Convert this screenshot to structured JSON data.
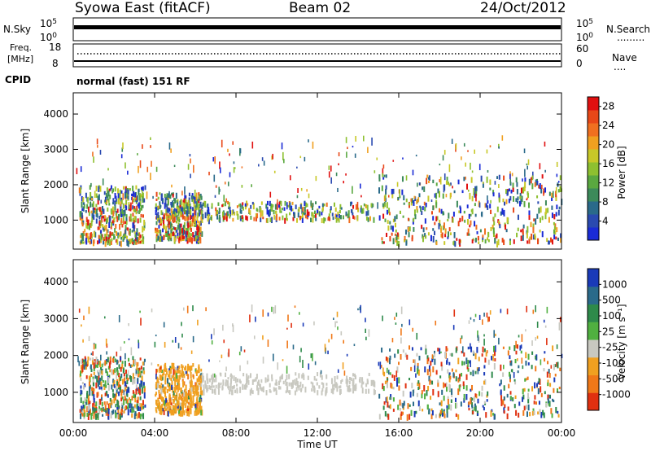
{
  "header": {
    "station": "Syowa East (fitACF)",
    "beam": "Beam 02",
    "date": "24/Oct/2012"
  },
  "top_panels": {
    "nsky_label": "N.Sky",
    "nsky_tick_hi": "10^5",
    "nsky_tick_lo": "10^0",
    "nsearch_label": "N.Search",
    "freq_label_a": "Freq.",
    "freq_label_b": "[MHz]",
    "freq_tick_hi": "18",
    "freq_tick_lo": "8",
    "nave_label": "Nave",
    "nave_tick_hi": "60",
    "nave_tick_lo": "0",
    "cpid_label": "CPID",
    "cpid_text": "normal (fast) 151 RF"
  },
  "chart_data": [
    {
      "type": "heatmap",
      "panel": "power",
      "ylabel": "Slant Range [km]",
      "y_ticks": [
        "1000",
        "2000",
        "3000",
        "4000"
      ],
      "ylim": [
        180,
        4600
      ],
      "xlim": [
        0,
        24
      ],
      "colorbar": {
        "label": "Power [dB]",
        "ticks": [
          "4",
          "8",
          "12",
          "16",
          "20",
          "24",
          "28"
        ],
        "range": [
          0,
          30
        ],
        "colors": [
          "#1a2bd6",
          "#2a4ab0",
          "#2a6a8a",
          "#3c8a5a",
          "#5aa840",
          "#8ec030",
          "#c8c828",
          "#f0a020",
          "#f07020",
          "#e84818",
          "#e01010"
        ]
      },
      "echo_regions": [
        {
          "x": [
            0.3,
            3.5
          ],
          "y": [
            400,
            2000
          ]
        },
        {
          "x": [
            4.0,
            6.3
          ],
          "y": [
            500,
            1800
          ]
        },
        {
          "x": [
            6.2,
            14.8
          ],
          "y": [
            1050,
            1550
          ]
        },
        {
          "x": [
            15.0,
            24.0
          ],
          "y": [
            400,
            2300
          ]
        }
      ]
    },
    {
      "type": "heatmap",
      "panel": "velocity",
      "ylabel": "Slant Range [km]",
      "y_ticks": [
        "1000",
        "2000",
        "3000",
        "4000"
      ],
      "ylim": [
        180,
        4600
      ],
      "xlim": [
        0,
        24
      ],
      "xlabel": "Time UT",
      "x_ticks": [
        "00:00",
        "04:00",
        "08:00",
        "12:00",
        "16:00",
        "20:00",
        "00:00"
      ],
      "colorbar": {
        "label": "Velocity [m s⁻¹]",
        "ticks": [
          "1000",
          "500",
          "100",
          "25",
          "-25",
          "-100",
          "-500",
          "-1000"
        ],
        "colors": [
          "#1a3ab8",
          "#2a6a8a",
          "#2e8a4a",
          "#50b040",
          "#c8c8c0",
          "#f0a020",
          "#f07818",
          "#e03010"
        ]
      },
      "echo_regions": [
        {
          "x": [
            0.3,
            3.5
          ],
          "y": [
            400,
            2000
          ]
        },
        {
          "x": [
            4.0,
            6.3
          ],
          "y": [
            500,
            1800
          ]
        },
        {
          "x": [
            6.2,
            14.8
          ],
          "y": [
            1050,
            1550
          ]
        },
        {
          "x": [
            15.0,
            24.0
          ],
          "y": [
            400,
            2300
          ]
        }
      ]
    }
  ]
}
